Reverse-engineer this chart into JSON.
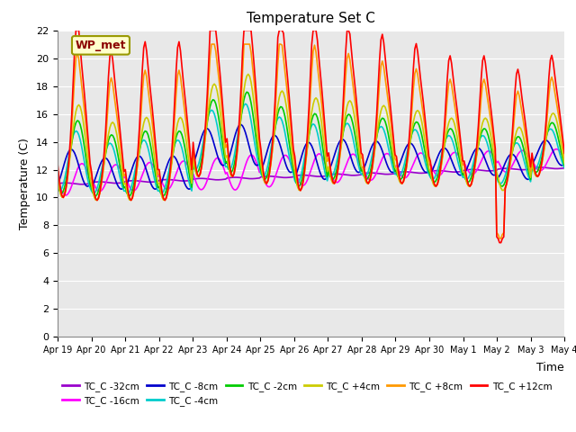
{
  "title": "Temperature Set C",
  "xlabel": "Time",
  "ylabel": "Temperature (C)",
  "ylim": [
    0,
    22
  ],
  "yticks": [
    0,
    2,
    4,
    6,
    8,
    10,
    12,
    14,
    16,
    18,
    20,
    22
  ],
  "x_labels": [
    "Apr 19",
    "Apr 20",
    "Apr 21",
    "Apr 22",
    "Apr 23",
    "Apr 24",
    "Apr 25",
    "Apr 26",
    "Apr 27",
    "Apr 28",
    "Apr 29",
    "Apr 30",
    "May 1",
    "May 2",
    "May 3",
    "May 4"
  ],
  "annotation": "WP_met",
  "series_order": [
    "TC_C -32cm",
    "TC_C -16cm",
    "TC_C -8cm",
    "TC_C -4cm",
    "TC_C -2cm",
    "TC_C +4cm",
    "TC_C +8cm",
    "TC_C +12cm"
  ],
  "series_colors": {
    "TC_C -32cm": "#9900CC",
    "TC_C -16cm": "#FF00FF",
    "TC_C -8cm": "#0000CC",
    "TC_C -4cm": "#00CCCC",
    "TC_C -2cm": "#00CC00",
    "TC_C +4cm": "#CCCC00",
    "TC_C +8cm": "#FF9900",
    "TC_C +12cm": "#FF0000"
  },
  "fig_bg": "#FFFFFF",
  "plot_bg": "#E8E8E8",
  "grid_color": "#FFFFFF",
  "n_days": 15,
  "hours_per_day": 24
}
